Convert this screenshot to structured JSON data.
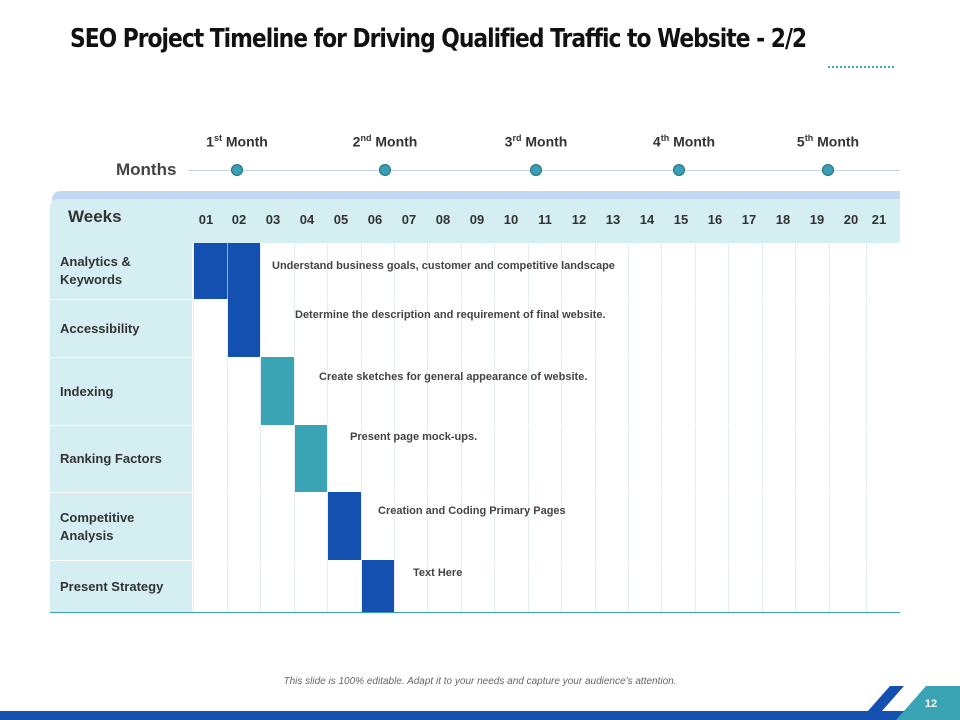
{
  "slide": {
    "title": "SEO Project Timeline for Driving Qualified Traffic to Website - 2/2",
    "footnote": "This slide is 100% editable. Adapt it to your needs and capture your audience’s attention.",
    "page_number": "12"
  },
  "months": {
    "label": "Months",
    "items": [
      {
        "num": "1",
        "sup": "st",
        "word": "Month"
      },
      {
        "num": "2",
        "sup": "nd",
        "word": "Month"
      },
      {
        "num": "3",
        "sup": "rd",
        "word": "Month"
      },
      {
        "num": "4",
        "sup": "th",
        "word": "Month"
      },
      {
        "num": "5",
        "sup": "th",
        "word": "Month"
      }
    ]
  },
  "weeks": {
    "label": "Weeks",
    "numbers": [
      "01",
      "02",
      "03",
      "04",
      "05",
      "06",
      "07",
      "08",
      "09",
      "10",
      "11",
      "12",
      "13",
      "14",
      "15",
      "16",
      "17",
      "18",
      "19",
      "20",
      "21"
    ]
  },
  "rows": [
    {
      "label": "Analytics & Keywords",
      "task": "Understand business goals, customer and competitive landscape",
      "start_week": 1,
      "end_week": 2,
      "color": "#1450b0"
    },
    {
      "label": "Accessibility",
      "task": "Determine the description and requirement of final website.",
      "start_week": 2,
      "end_week": 2,
      "color": "#1450b0"
    },
    {
      "label": "Indexing",
      "task": "Create sketches for general appearance of website.",
      "start_week": 3,
      "end_week": 3,
      "color": "#3aa4b4"
    },
    {
      "label": "Ranking Factors",
      "task": "Present page mock-ups.",
      "start_week": 4,
      "end_week": 4,
      "color": "#3aa4b4"
    },
    {
      "label": "Competitive Analysis",
      "task": "Creation and Coding Primary  Pages",
      "start_week": 5,
      "end_week": 5,
      "color": "#1450b0"
    },
    {
      "label": "Present Strategy",
      "task": "Text Here",
      "start_week": 6,
      "end_week": 6,
      "color": "#1450b0"
    }
  ],
  "colors": {
    "primary": "#1450b0",
    "accent": "#3aa4b4",
    "header_bg": "#d4eef2"
  }
}
